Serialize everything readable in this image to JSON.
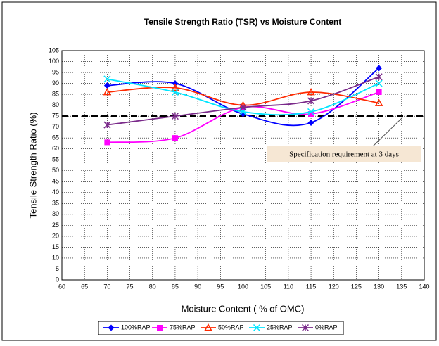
{
  "chart_data": {
    "type": "line",
    "title": "Tensile Strength Ratio (TSR)  vs Moisture Content",
    "x_label": "Moisture Content ( % of OMC)",
    "y_label": "Tensile Strength Ratio (%)",
    "x": [
      70,
      85,
      100,
      115,
      130
    ],
    "series": [
      {
        "name": "100%RAP",
        "color": "#0000ff",
        "marker": "diamond",
        "values": [
          89,
          90,
          76,
          72,
          97
        ]
      },
      {
        "name": "75%RAP",
        "color": "#ff00ff",
        "marker": "square",
        "values": [
          63,
          65,
          79,
          76,
          86
        ]
      },
      {
        "name": "50%RAP",
        "color": "#ff2a00",
        "marker": "triangle",
        "values": [
          86,
          88,
          80,
          86,
          81
        ]
      },
      {
        "name": "25%RAP",
        "color": "#00e5ff",
        "marker": "x",
        "values": [
          92,
          86,
          77,
          77,
          90
        ]
      },
      {
        "name": "0%RAP",
        "color": "#7a2a8a",
        "marker": "star",
        "values": [
          71,
          75,
          79,
          82,
          93
        ]
      }
    ],
    "reference_line": {
      "value": 75,
      "label": "Specification requirement at 3 days"
    },
    "xlim": [
      60,
      140
    ],
    "xticks": [
      60,
      65,
      70,
      75,
      80,
      85,
      90,
      95,
      100,
      105,
      110,
      115,
      120,
      125,
      130,
      135,
      140
    ],
    "ylim": [
      0,
      105
    ],
    "yticks": [
      0,
      5,
      10,
      15,
      20,
      25,
      30,
      35,
      40,
      45,
      50,
      55,
      60,
      65,
      70,
      75,
      80,
      85,
      90,
      95,
      100,
      105
    ],
    "grid": true,
    "legend": "bottom"
  }
}
